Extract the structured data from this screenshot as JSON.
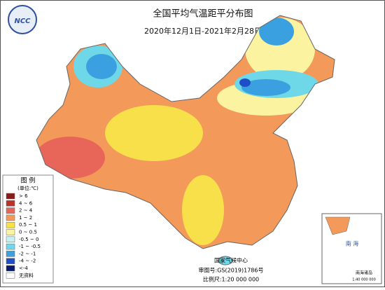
{
  "header": {
    "logo": "NCC",
    "title": "全国平均气温距平分布图",
    "period": "2020年12月1日-2021年2月28日"
  },
  "legend": {
    "title": "图 例",
    "unit": "(单位:℃)",
    "items": [
      {
        "label": "> 6",
        "color": "#8b1a1a"
      },
      {
        "label": "4 ~ 6",
        "color": "#c0302a"
      },
      {
        "label": "2 ~ 4",
        "color": "#e8655a"
      },
      {
        "label": "1 ~ 2",
        "color": "#f39a5a"
      },
      {
        "label": "0.5 ~ 1",
        "color": "#f7e04a"
      },
      {
        "label": "0 ~ 0.5",
        "color": "#fbf3a0"
      },
      {
        "label": "-0.5 ~ 0",
        "color": "#c8f0f0"
      },
      {
        "label": "-1 ~ -0.5",
        "color": "#6fd8e8"
      },
      {
        "label": "-2 ~ -1",
        "color": "#3ba0e0"
      },
      {
        "label": "-4 ~ -2",
        "color": "#1f4fc8"
      },
      {
        "label": "<-4",
        "color": "#0a1a6a"
      },
      {
        "label": "无资料",
        "color": "#ffffff"
      }
    ]
  },
  "footer": {
    "agency": "国家气候中心",
    "approval": "审图号:GS(2019)1786号",
    "scale": "比例尺:1:20 000 000"
  },
  "inset": {
    "label": "南海诸岛",
    "scale": "1:40 000 000"
  }
}
